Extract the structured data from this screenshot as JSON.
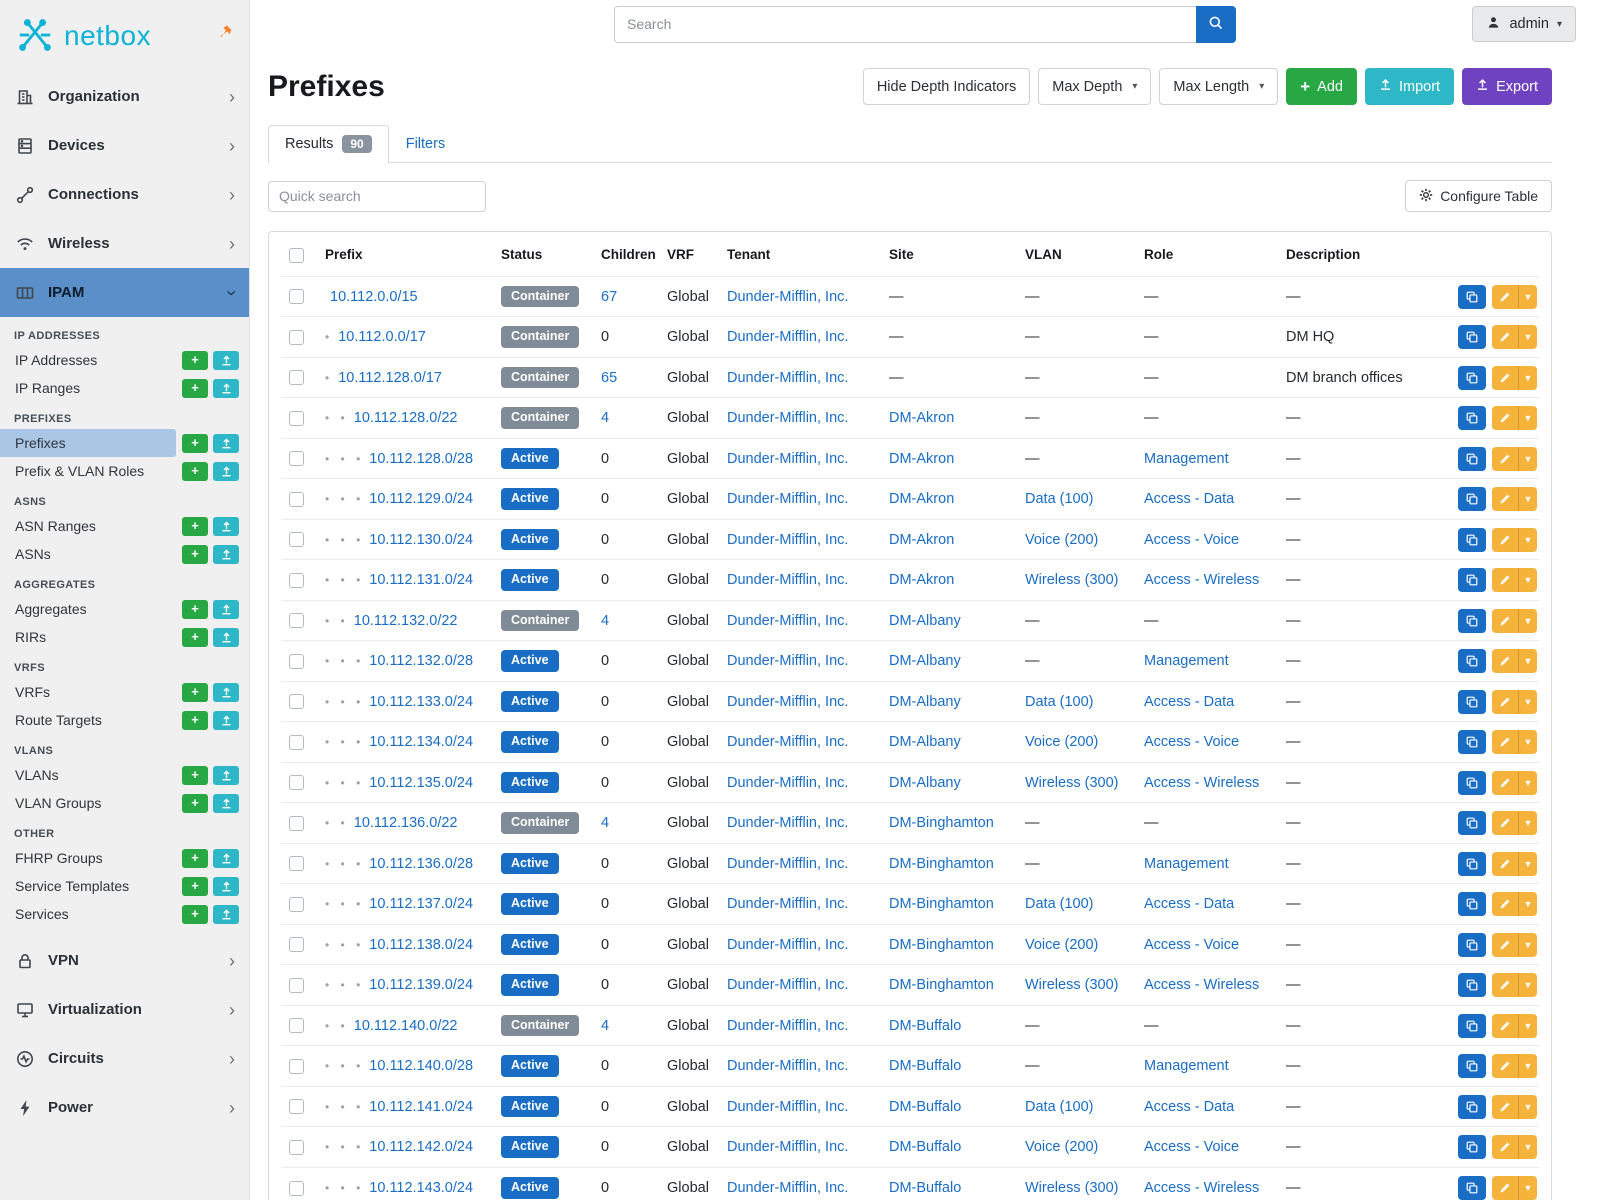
{
  "brand": {
    "name": "netbox"
  },
  "topbar": {
    "search_placeholder": "Search",
    "user": "admin"
  },
  "sidebar": {
    "top_items": [
      {
        "label": "Organization",
        "icon": "organization"
      },
      {
        "label": "Devices",
        "icon": "devices"
      },
      {
        "label": "Connections",
        "icon": "connections"
      },
      {
        "label": "Wireless",
        "icon": "wireless"
      }
    ],
    "active_item": {
      "label": "IPAM",
      "icon": "ipam"
    },
    "ipam_sections": [
      {
        "header": "IP ADDRESSES",
        "items": [
          "IP Addresses",
          "IP Ranges"
        ]
      },
      {
        "header": "PREFIXES",
        "items": [
          "Prefixes",
          "Prefix & VLAN Roles"
        ]
      },
      {
        "header": "ASNS",
        "items": [
          "ASN Ranges",
          "ASNs"
        ]
      },
      {
        "header": "AGGREGATES",
        "items": [
          "Aggregates",
          "RIRs"
        ]
      },
      {
        "header": "VRFS",
        "items": [
          "VRFs",
          "Route Targets"
        ]
      },
      {
        "header": "VLANS",
        "items": [
          "VLANs",
          "VLAN Groups"
        ]
      },
      {
        "header": "OTHER",
        "items": [
          "FHRP Groups",
          "Service Templates",
          "Services"
        ]
      }
    ],
    "selected_subitem": "Prefixes",
    "bottom_items": [
      {
        "label": "VPN",
        "icon": "vpn"
      },
      {
        "label": "Virtualization",
        "icon": "virtualization"
      },
      {
        "label": "Circuits",
        "icon": "circuits"
      },
      {
        "label": "Power",
        "icon": "power"
      }
    ]
  },
  "page": {
    "title": "Prefixes",
    "hide_depth_label": "Hide Depth Indicators",
    "max_depth_label": "Max Depth",
    "max_length_label": "Max Length",
    "add_label": "Add",
    "import_label": "Import",
    "export_label": "Export",
    "tabs": {
      "results": "Results",
      "results_count": "90",
      "filters": "Filters"
    },
    "quick_search_placeholder": "Quick search",
    "configure_table_label": "Configure Table"
  },
  "table": {
    "columns": [
      "Prefix",
      "Status",
      "Children",
      "VRF",
      "Tenant",
      "Site",
      "VLAN",
      "Role",
      "Description"
    ],
    "rows": [
      {
        "depth": 0,
        "prefix": "10.112.0.0/15",
        "status": "Container",
        "children": "67",
        "vrf": "Global",
        "tenant": "Dunder-Mifflin, Inc.",
        "site": "—",
        "vlan": "—",
        "role": "—",
        "description": "—"
      },
      {
        "depth": 1,
        "prefix": "10.112.0.0/17",
        "status": "Container",
        "children": "0",
        "vrf": "Global",
        "tenant": "Dunder-Mifflin, Inc.",
        "site": "—",
        "vlan": "—",
        "role": "—",
        "description": "DM HQ"
      },
      {
        "depth": 1,
        "prefix": "10.112.128.0/17",
        "status": "Container",
        "children": "65",
        "vrf": "Global",
        "tenant": "Dunder-Mifflin, Inc.",
        "site": "—",
        "vlan": "—",
        "role": "—",
        "description": "DM branch offices"
      },
      {
        "depth": 2,
        "prefix": "10.112.128.0/22",
        "status": "Container",
        "children": "4",
        "vrf": "Global",
        "tenant": "Dunder-Mifflin, Inc.",
        "site": "DM-Akron",
        "vlan": "—",
        "role": "—",
        "description": "—"
      },
      {
        "depth": 3,
        "prefix": "10.112.128.0/28",
        "status": "Active",
        "children": "0",
        "vrf": "Global",
        "tenant": "Dunder-Mifflin, Inc.",
        "site": "DM-Akron",
        "vlan": "—",
        "role": "Management",
        "description": "—"
      },
      {
        "depth": 3,
        "prefix": "10.112.129.0/24",
        "status": "Active",
        "children": "0",
        "vrf": "Global",
        "tenant": "Dunder-Mifflin, Inc.",
        "site": "DM-Akron",
        "vlan": "Data (100)",
        "role": "Access - Data",
        "description": "—"
      },
      {
        "depth": 3,
        "prefix": "10.112.130.0/24",
        "status": "Active",
        "children": "0",
        "vrf": "Global",
        "tenant": "Dunder-Mifflin, Inc.",
        "site": "DM-Akron",
        "vlan": "Voice (200)",
        "role": "Access - Voice",
        "description": "—"
      },
      {
        "depth": 3,
        "prefix": "10.112.131.0/24",
        "status": "Active",
        "children": "0",
        "vrf": "Global",
        "tenant": "Dunder-Mifflin, Inc.",
        "site": "DM-Akron",
        "vlan": "Wireless (300)",
        "role": "Access - Wireless",
        "description": "—"
      },
      {
        "depth": 2,
        "prefix": "10.112.132.0/22",
        "status": "Container",
        "children": "4",
        "vrf": "Global",
        "tenant": "Dunder-Mifflin, Inc.",
        "site": "DM-Albany",
        "vlan": "—",
        "role": "—",
        "description": "—"
      },
      {
        "depth": 3,
        "prefix": "10.112.132.0/28",
        "status": "Active",
        "children": "0",
        "vrf": "Global",
        "tenant": "Dunder-Mifflin, Inc.",
        "site": "DM-Albany",
        "vlan": "—",
        "role": "Management",
        "description": "—"
      },
      {
        "depth": 3,
        "prefix": "10.112.133.0/24",
        "status": "Active",
        "children": "0",
        "vrf": "Global",
        "tenant": "Dunder-Mifflin, Inc.",
        "site": "DM-Albany",
        "vlan": "Data (100)",
        "role": "Access - Data",
        "description": "—"
      },
      {
        "depth": 3,
        "prefix": "10.112.134.0/24",
        "status": "Active",
        "children": "0",
        "vrf": "Global",
        "tenant": "Dunder-Mifflin, Inc.",
        "site": "DM-Albany",
        "vlan": "Voice (200)",
        "role": "Access - Voice",
        "description": "—"
      },
      {
        "depth": 3,
        "prefix": "10.112.135.0/24",
        "status": "Active",
        "children": "0",
        "vrf": "Global",
        "tenant": "Dunder-Mifflin, Inc.",
        "site": "DM-Albany",
        "vlan": "Wireless (300)",
        "role": "Access - Wireless",
        "description": "—"
      },
      {
        "depth": 2,
        "prefix": "10.112.136.0/22",
        "status": "Container",
        "children": "4",
        "vrf": "Global",
        "tenant": "Dunder-Mifflin, Inc.",
        "site": "DM-Binghamton",
        "vlan": "—",
        "role": "—",
        "description": "—"
      },
      {
        "depth": 3,
        "prefix": "10.112.136.0/28",
        "status": "Active",
        "children": "0",
        "vrf": "Global",
        "tenant": "Dunder-Mifflin, Inc.",
        "site": "DM-Binghamton",
        "vlan": "—",
        "role": "Management",
        "description": "—"
      },
      {
        "depth": 3,
        "prefix": "10.112.137.0/24",
        "status": "Active",
        "children": "0",
        "vrf": "Global",
        "tenant": "Dunder-Mifflin, Inc.",
        "site": "DM-Binghamton",
        "vlan": "Data (100)",
        "role": "Access - Data",
        "description": "—"
      },
      {
        "depth": 3,
        "prefix": "10.112.138.0/24",
        "status": "Active",
        "children": "0",
        "vrf": "Global",
        "tenant": "Dunder-Mifflin, Inc.",
        "site": "DM-Binghamton",
        "vlan": "Voice (200)",
        "role": "Access - Voice",
        "description": "—"
      },
      {
        "depth": 3,
        "prefix": "10.112.139.0/24",
        "status": "Active",
        "children": "0",
        "vrf": "Global",
        "tenant": "Dunder-Mifflin, Inc.",
        "site": "DM-Binghamton",
        "vlan": "Wireless (300)",
        "role": "Access - Wireless",
        "description": "—"
      },
      {
        "depth": 2,
        "prefix": "10.112.140.0/22",
        "status": "Container",
        "children": "4",
        "vrf": "Global",
        "tenant": "Dunder-Mifflin, Inc.",
        "site": "DM-Buffalo",
        "vlan": "—",
        "role": "—",
        "description": "—"
      },
      {
        "depth": 3,
        "prefix": "10.112.140.0/28",
        "status": "Active",
        "children": "0",
        "vrf": "Global",
        "tenant": "Dunder-Mifflin, Inc.",
        "site": "DM-Buffalo",
        "vlan": "—",
        "role": "Management",
        "description": "—"
      },
      {
        "depth": 3,
        "prefix": "10.112.141.0/24",
        "status": "Active",
        "children": "0",
        "vrf": "Global",
        "tenant": "Dunder-Mifflin, Inc.",
        "site": "DM-Buffalo",
        "vlan": "Data (100)",
        "role": "Access - Data",
        "description": "—"
      },
      {
        "depth": 3,
        "prefix": "10.112.142.0/24",
        "status": "Active",
        "children": "0",
        "vrf": "Global",
        "tenant": "Dunder-Mifflin, Inc.",
        "site": "DM-Buffalo",
        "vlan": "Voice (200)",
        "role": "Access - Voice",
        "description": "—"
      },
      {
        "depth": 3,
        "prefix": "10.112.143.0/24",
        "status": "Active",
        "children": "0",
        "vrf": "Global",
        "tenant": "Dunder-Mifflin, Inc.",
        "site": "DM-Buffalo",
        "vlan": "Wireless (300)",
        "role": "Access - Wireless",
        "description": "—"
      }
    ]
  },
  "colors": {
    "brand": "#0bb3d6",
    "accent": "#1a6dc4",
    "badge-active": "#1a6dc4",
    "badge-container": "#7f8b97",
    "green": "#28a745",
    "teal": "#2eb7c6",
    "purple": "#6f42c1",
    "warning": "#f6b33c",
    "sidebar-active": "#5b8fc9",
    "sidebar-selected": "#a9c6e5",
    "pin": "#f8822a"
  }
}
